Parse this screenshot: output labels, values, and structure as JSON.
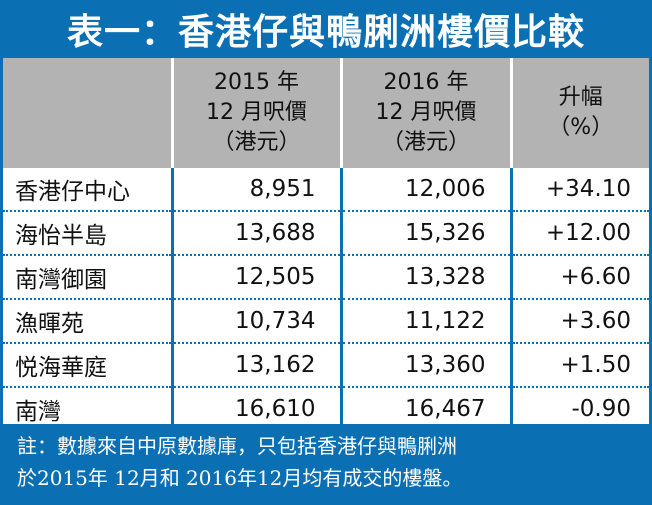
{
  "title": "表一：香港仔與鴨脷洲樓價比較",
  "headers": [
    {
      "line1": "",
      "line2": "",
      "line3": ""
    },
    {
      "line1": "2015 年",
      "line2": "12 月呎價",
      "line3": "（港元）"
    },
    {
      "line1": "2016 年",
      "line2": "12 月呎價",
      "line3": "（港元）"
    },
    {
      "line1": "升幅",
      "line2": "（%）",
      "line3": ""
    }
  ],
  "rows": [
    {
      "name": "香港仔中心",
      "p2015": "8,951",
      "p2016": "12,006",
      "change": "+34.10"
    },
    {
      "name": "海怡半島",
      "p2015": "13,688",
      "p2016": "15,326",
      "change": "+12.00"
    },
    {
      "name": "南灣御園",
      "p2015": "12,505",
      "p2016": "13,328",
      "change": "+6.60"
    },
    {
      "name": "漁暉苑",
      "p2015": "10,734",
      "p2016": "11,122",
      "change": "+3.60"
    },
    {
      "name": "悦海華庭",
      "p2015": "13,162",
      "p2016": "13,360",
      "change": "+1.50"
    },
    {
      "name": "南灣",
      "p2015": "16,610",
      "p2016": "16,467",
      "change": "-0.90"
    }
  ],
  "note": {
    "line1": "註：數據來自中原數據庫，只包括香港仔與鴨脷洲",
    "line2": "於2015年 12月和 2016年12月均有成交的樓盤。"
  },
  "colors": {
    "accent": "#0b6fb3",
    "header_bg": "#b3b3b3"
  }
}
